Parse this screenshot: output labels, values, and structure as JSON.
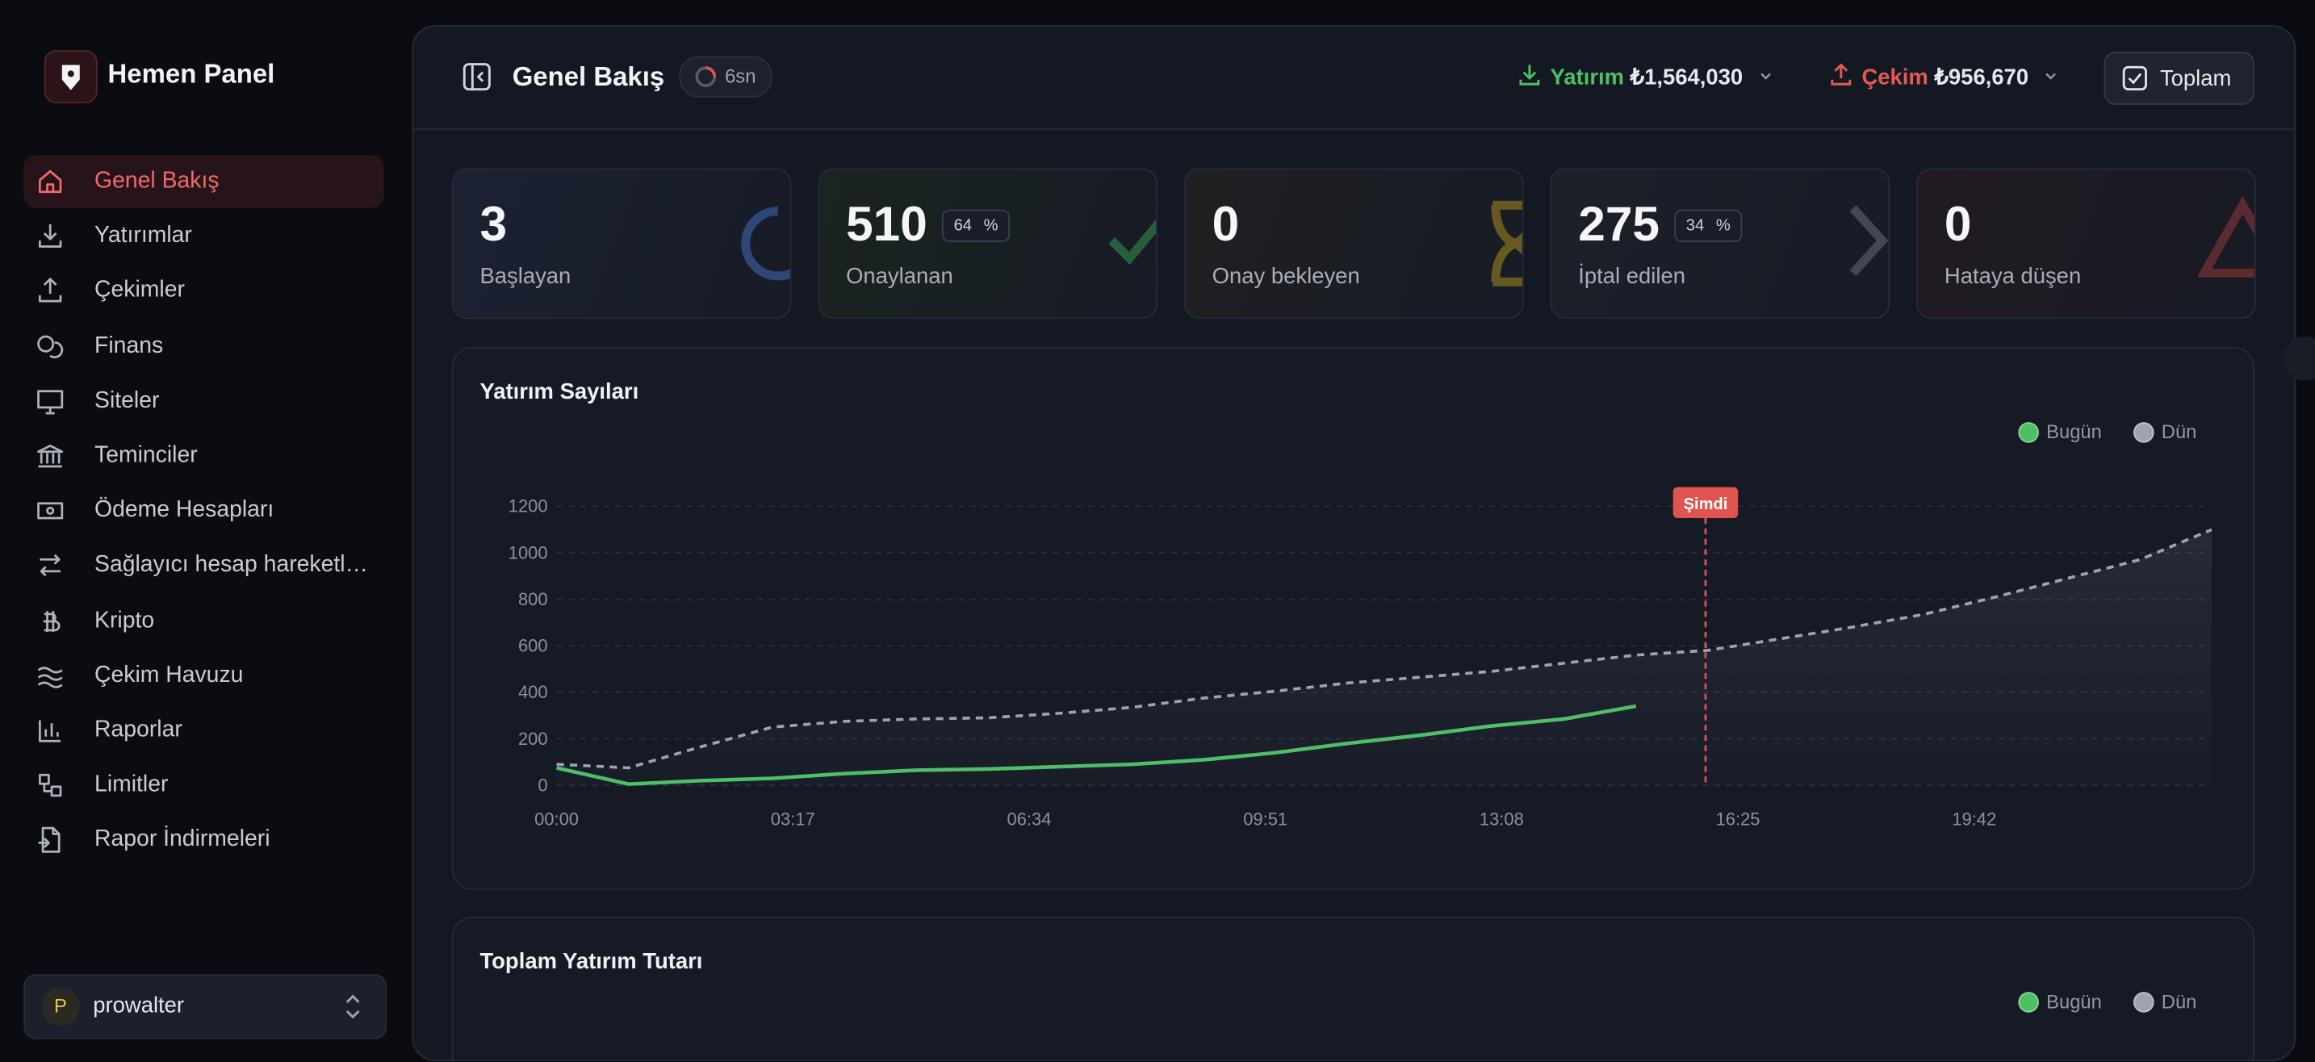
{
  "sidebar": {
    "brand": "Hemen Panel",
    "nav": [
      {
        "label": "Genel Bakış",
        "active": true
      },
      {
        "label": "Yatırımlar"
      },
      {
        "label": "Çekimler"
      },
      {
        "label": "Finans"
      },
      {
        "label": "Siteler"
      },
      {
        "label": "Teminciler"
      },
      {
        "label": "Ödeme Hesapları"
      },
      {
        "label": "Sağlayıcı hesap hareketl…"
      },
      {
        "label": "Kripto"
      },
      {
        "label": "Çekim Havuzu"
      },
      {
        "label": "Raporlar"
      },
      {
        "label": "Limitler"
      },
      {
        "label": "Rapor İndirmeleri"
      }
    ],
    "user": {
      "initial": "P",
      "name": "prowalter"
    }
  },
  "header": {
    "title": "Genel Bakış",
    "refresh": "6sn",
    "deposit": {
      "label": "Yatırım",
      "amount": "₺1,564,030"
    },
    "withdrawal": {
      "label": "Çekim",
      "amount": "₺956,670"
    },
    "button": "Toplam"
  },
  "stats": [
    {
      "value": "3",
      "label": "Başlayan"
    },
    {
      "value": "510",
      "badge": "64",
      "badge_unit": "%",
      "label": "Onaylanan"
    },
    {
      "value": "0",
      "label": "Onay bekleyen"
    },
    {
      "value": "275",
      "badge": "34",
      "badge_unit": "%",
      "label": "İptal edilen"
    },
    {
      "value": "0",
      "label": "Hataya düşen"
    }
  ],
  "chart_data": [
    {
      "type": "line",
      "title": "Yatırım Sayıları",
      "x": [
        0,
        60,
        120,
        180,
        240,
        300,
        360,
        420,
        480,
        540,
        600,
        660,
        720,
        780,
        840,
        900,
        960,
        1020,
        1080,
        1140,
        1200,
        1260,
        1320,
        1380
      ],
      "xlim": [
        0,
        1380
      ],
      "xticks": [
        {
          "value": 0,
          "label": "00:00"
        },
        {
          "value": 197,
          "label": "03:17"
        },
        {
          "value": 394,
          "label": "06:34"
        },
        {
          "value": 591,
          "label": "09:51"
        },
        {
          "value": 788,
          "label": "13:08"
        },
        {
          "value": 985,
          "label": "16:25"
        },
        {
          "value": 1182,
          "label": "19:42"
        }
      ],
      "ylim": [
        0,
        1200
      ],
      "yticks": [
        0,
        200,
        400,
        600,
        800,
        1000,
        1200
      ],
      "grid": true,
      "legend": "top-right",
      "now": {
        "x": 958,
        "label": "Şimdi",
        "color": "#e0534f"
      },
      "series": [
        {
          "name": "Bugün",
          "color": "#4cc062",
          "line_style": "solid",
          "values": [
            75,
            5,
            20,
            30,
            50,
            65,
            70,
            80,
            90,
            110,
            140,
            180,
            215,
            255,
            285,
            340,
            null,
            null,
            null,
            null,
            null,
            null,
            null,
            null
          ]
        },
        {
          "name": "Dün",
          "color": "#9ea3b4",
          "line_style": "dashed",
          "fill_area": true,
          "values": [
            90,
            75,
            165,
            250,
            275,
            285,
            290,
            310,
            335,
            375,
            405,
            440,
            465,
            490,
            525,
            560,
            580,
            630,
            680,
            735,
            810,
            890,
            970,
            1100
          ]
        }
      ]
    },
    {
      "type": "line",
      "title": "Toplam Yatırım Tutarı",
      "legend": "top-right",
      "series": [
        {
          "name": "Bugün",
          "color": "#4cc062"
        },
        {
          "name": "Dün",
          "color": "#9ea3b4"
        }
      ]
    }
  ]
}
